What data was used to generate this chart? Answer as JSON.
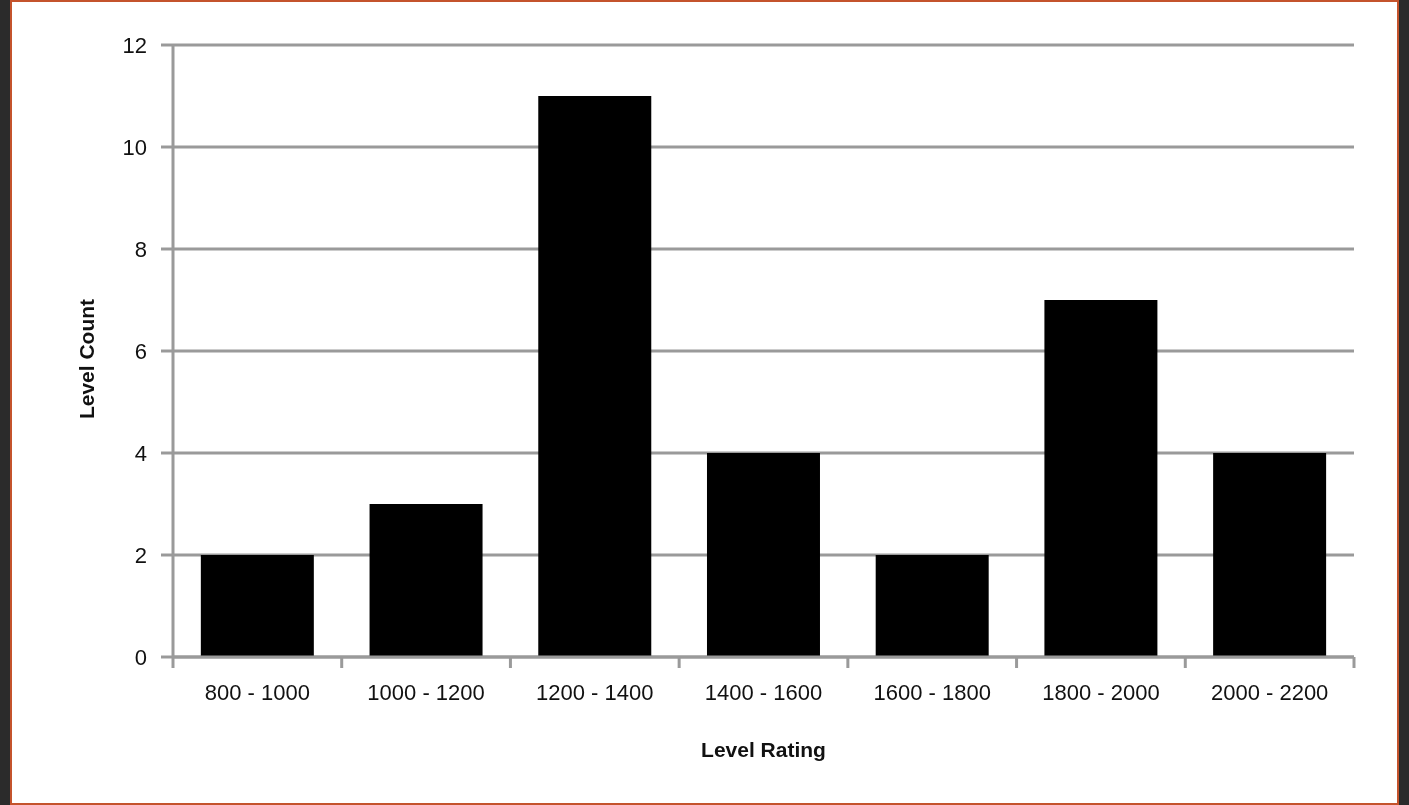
{
  "chart_data": {
    "type": "bar",
    "xlabel": "Level Rating",
    "ylabel": "Level Count",
    "categories": [
      "800 - 1000",
      "1000 - 1200",
      "1200 - 1400",
      "1400 - 1600",
      "1600 - 1800",
      "1800 - 2000",
      "2000 - 2200"
    ],
    "values": [
      2,
      3,
      11,
      4,
      2,
      7,
      4
    ],
    "color": "#000000",
    "ylim": [
      0,
      12
    ],
    "yticks": [
      0,
      2,
      4,
      6,
      8,
      10,
      12
    ],
    "grid": "y"
  }
}
